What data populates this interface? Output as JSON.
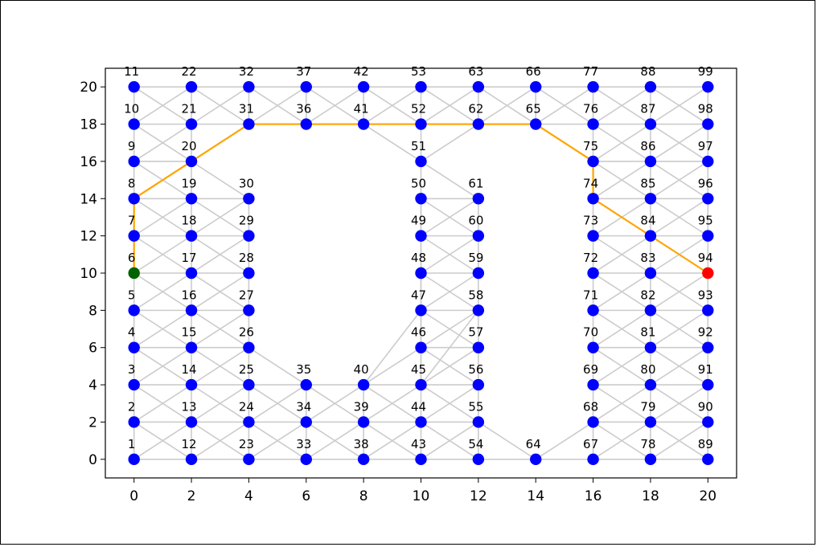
{
  "chart_data": {
    "type": "scatter",
    "title": "",
    "xlabel": "",
    "ylabel": "",
    "xlim": [
      -1,
      21
    ],
    "ylim": [
      -1,
      21
    ],
    "xticks": [
      0,
      2,
      4,
      6,
      8,
      10,
      12,
      14,
      16,
      18,
      20
    ],
    "yticks": [
      0,
      2,
      4,
      6,
      8,
      10,
      12,
      14,
      16,
      18,
      20
    ],
    "grid": false,
    "colors": {
      "node": "#0000ff",
      "edge": "#cccccc",
      "path": "#ffa500",
      "start": "#006400",
      "goal": "#ff0000"
    },
    "nodes": [
      {
        "id": "1",
        "x": 0,
        "y": 0
      },
      {
        "id": "2",
        "x": 0,
        "y": 2
      },
      {
        "id": "3",
        "x": 0,
        "y": 4
      },
      {
        "id": "4",
        "x": 0,
        "y": 6
      },
      {
        "id": "5",
        "x": 0,
        "y": 8
      },
      {
        "id": "6",
        "x": 0,
        "y": 10
      },
      {
        "id": "7",
        "x": 0,
        "y": 12
      },
      {
        "id": "8",
        "x": 0,
        "y": 14
      },
      {
        "id": "9",
        "x": 0,
        "y": 16
      },
      {
        "id": "10",
        "x": 0,
        "y": 18
      },
      {
        "id": "11",
        "x": 0,
        "y": 20
      },
      {
        "id": "12",
        "x": 2,
        "y": 0
      },
      {
        "id": "13",
        "x": 2,
        "y": 2
      },
      {
        "id": "14",
        "x": 2,
        "y": 4
      },
      {
        "id": "15",
        "x": 2,
        "y": 6
      },
      {
        "id": "16",
        "x": 2,
        "y": 8
      },
      {
        "id": "17",
        "x": 2,
        "y": 10
      },
      {
        "id": "18",
        "x": 2,
        "y": 12
      },
      {
        "id": "19",
        "x": 2,
        "y": 14
      },
      {
        "id": "20",
        "x": 2,
        "y": 16
      },
      {
        "id": "21",
        "x": 2,
        "y": 18
      },
      {
        "id": "22",
        "x": 2,
        "y": 20
      },
      {
        "id": "23",
        "x": 4,
        "y": 0
      },
      {
        "id": "24",
        "x": 4,
        "y": 2
      },
      {
        "id": "25",
        "x": 4,
        "y": 4
      },
      {
        "id": "26",
        "x": 4,
        "y": 6
      },
      {
        "id": "27",
        "x": 4,
        "y": 8
      },
      {
        "id": "28",
        "x": 4,
        "y": 10
      },
      {
        "id": "29",
        "x": 4,
        "y": 12
      },
      {
        "id": "30",
        "x": 4,
        "y": 14
      },
      {
        "id": "31",
        "x": 4,
        "y": 18
      },
      {
        "id": "32",
        "x": 4,
        "y": 20
      },
      {
        "id": "33",
        "x": 6,
        "y": 0
      },
      {
        "id": "34",
        "x": 6,
        "y": 2
      },
      {
        "id": "35",
        "x": 6,
        "y": 4
      },
      {
        "id": "36",
        "x": 6,
        "y": 18
      },
      {
        "id": "37",
        "x": 6,
        "y": 20
      },
      {
        "id": "38",
        "x": 8,
        "y": 0
      },
      {
        "id": "39",
        "x": 8,
        "y": 2
      },
      {
        "id": "40",
        "x": 8,
        "y": 4
      },
      {
        "id": "41",
        "x": 8,
        "y": 18
      },
      {
        "id": "42",
        "x": 8,
        "y": 20
      },
      {
        "id": "43",
        "x": 10,
        "y": 0
      },
      {
        "id": "44",
        "x": 10,
        "y": 2
      },
      {
        "id": "45",
        "x": 10,
        "y": 4
      },
      {
        "id": "46",
        "x": 10,
        "y": 6
      },
      {
        "id": "47",
        "x": 10,
        "y": 8
      },
      {
        "id": "48",
        "x": 10,
        "y": 10
      },
      {
        "id": "49",
        "x": 10,
        "y": 12
      },
      {
        "id": "50",
        "x": 10,
        "y": 14
      },
      {
        "id": "51",
        "x": 10,
        "y": 16
      },
      {
        "id": "52",
        "x": 10,
        "y": 18
      },
      {
        "id": "53",
        "x": 10,
        "y": 20
      },
      {
        "id": "54",
        "x": 12,
        "y": 0
      },
      {
        "id": "55",
        "x": 12,
        "y": 2
      },
      {
        "id": "56",
        "x": 12,
        "y": 4
      },
      {
        "id": "57",
        "x": 12,
        "y": 6
      },
      {
        "id": "58",
        "x": 12,
        "y": 8
      },
      {
        "id": "59",
        "x": 12,
        "y": 10
      },
      {
        "id": "60",
        "x": 12,
        "y": 12
      },
      {
        "id": "61",
        "x": 12,
        "y": 14
      },
      {
        "id": "62",
        "x": 12,
        "y": 18
      },
      {
        "id": "63",
        "x": 12,
        "y": 20
      },
      {
        "id": "64",
        "x": 14,
        "y": 0
      },
      {
        "id": "65",
        "x": 14,
        "y": 18
      },
      {
        "id": "66",
        "x": 14,
        "y": 20
      },
      {
        "id": "67",
        "x": 16,
        "y": 0
      },
      {
        "id": "68",
        "x": 16,
        "y": 2
      },
      {
        "id": "69",
        "x": 16,
        "y": 4
      },
      {
        "id": "70",
        "x": 16,
        "y": 6
      },
      {
        "id": "71",
        "x": 16,
        "y": 8
      },
      {
        "id": "72",
        "x": 16,
        "y": 10
      },
      {
        "id": "73",
        "x": 16,
        "y": 12
      },
      {
        "id": "74",
        "x": 16,
        "y": 14
      },
      {
        "id": "75",
        "x": 16,
        "y": 16
      },
      {
        "id": "76",
        "x": 16,
        "y": 18
      },
      {
        "id": "77",
        "x": 16,
        "y": 20
      },
      {
        "id": "78",
        "x": 18,
        "y": 0
      },
      {
        "id": "79",
        "x": 18,
        "y": 2
      },
      {
        "id": "80",
        "x": 18,
        "y": 4
      },
      {
        "id": "81",
        "x": 18,
        "y": 6
      },
      {
        "id": "82",
        "x": 18,
        "y": 8
      },
      {
        "id": "83",
        "x": 18,
        "y": 10
      },
      {
        "id": "84",
        "x": 18,
        "y": 12
      },
      {
        "id": "85",
        "x": 18,
        "y": 14
      },
      {
        "id": "86",
        "x": 18,
        "y": 16
      },
      {
        "id": "87",
        "x": 18,
        "y": 18
      },
      {
        "id": "88",
        "x": 18,
        "y": 20
      },
      {
        "id": "89",
        "x": 20,
        "y": 0
      },
      {
        "id": "90",
        "x": 20,
        "y": 2
      },
      {
        "id": "91",
        "x": 20,
        "y": 4
      },
      {
        "id": "92",
        "x": 20,
        "y": 6
      },
      {
        "id": "93",
        "x": 20,
        "y": 8
      },
      {
        "id": "94",
        "x": 20,
        "y": 10
      },
      {
        "id": "95",
        "x": 20,
        "y": 12
      },
      {
        "id": "96",
        "x": 20,
        "y": 14
      },
      {
        "id": "97",
        "x": 20,
        "y": 16
      },
      {
        "id": "98",
        "x": 20,
        "y": 18
      },
      {
        "id": "99",
        "x": 20,
        "y": 20
      }
    ],
    "extra_edges": [
      [
        "41",
        "51"
      ],
      [
        "51",
        "62"
      ],
      [
        "50",
        "61"
      ],
      [
        "45",
        "58"
      ],
      [
        "55",
        "64"
      ],
      [
        "64",
        "68"
      ],
      [
        "40",
        "47"
      ],
      [
        "45",
        "50"
      ]
    ],
    "path": [
      "6",
      "7",
      "8",
      "20",
      "31",
      "36",
      "41",
      "52",
      "62",
      "65",
      "75",
      "74",
      "84",
      "94"
    ],
    "start": "6",
    "goal": "94"
  }
}
